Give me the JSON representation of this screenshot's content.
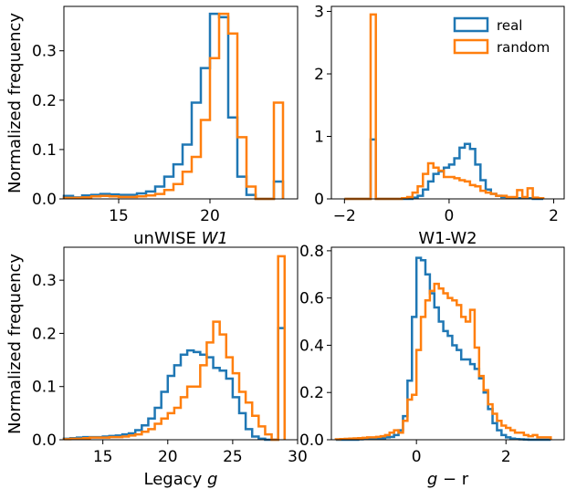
{
  "figure": {
    "ylabel_left": "Normalized frequency",
    "legend": [
      {
        "label": "real",
        "color": "#1f77b4"
      },
      {
        "label": "random",
        "color": "#ff7f0e"
      }
    ]
  },
  "chart_data": [
    {
      "type": "histogram-step",
      "xlabel_main": "unWISE ",
      "xlabel_italic": "W1",
      "xlabel_tail": "",
      "xlim": [
        12.0,
        24.8
      ],
      "ylim": [
        0,
        0.39
      ],
      "xticks": [
        15,
        20
      ],
      "yticks": [
        0.0,
        0.1,
        0.2,
        0.3
      ],
      "ytick_labels": [
        "0.0",
        "0.1",
        "0.2",
        "0.3"
      ],
      "edges": [
        12.0,
        12.5,
        13.0,
        13.5,
        14.0,
        14.5,
        15.0,
        15.5,
        16.0,
        16.5,
        17.0,
        17.5,
        18.0,
        18.5,
        19.0,
        19.5,
        20.0,
        20.5,
        21.0,
        21.5,
        22.0,
        22.5,
        23.0,
        23.5,
        24.0
      ],
      "series": [
        {
          "name": "real",
          "color": "#1f77b4",
          "values": [
            0.006,
            0.003,
            0.007,
            0.008,
            0.01,
            0.009,
            0.008,
            0.008,
            0.011,
            0.015,
            0.025,
            0.045,
            0.07,
            0.11,
            0.195,
            0.265,
            0.375,
            0.368,
            0.165,
            0.045,
            0.008,
            0.0,
            0.0,
            0.035
          ]
        },
        {
          "name": "random",
          "color": "#ff7f0e",
          "values": [
            0.002,
            0.002,
            0.003,
            0.005,
            0.006,
            0.005,
            0.004,
            0.004,
            0.005,
            0.007,
            0.01,
            0.018,
            0.03,
            0.055,
            0.085,
            0.16,
            0.285,
            0.375,
            0.335,
            0.125,
            0.025,
            0.0,
            0.0,
            0.195
          ]
        }
      ]
    },
    {
      "type": "histogram-step",
      "xlabel_main": "W1-W2",
      "xlabel_italic": "",
      "xlabel_tail": "",
      "xlim": [
        -2.25,
        2.2
      ],
      "ylim": [
        0,
        3.08
      ],
      "xticks": [
        -2,
        0,
        2
      ],
      "xtick_labels": [
        "−2",
        "0",
        "2"
      ],
      "yticks": [
        0,
        1,
        2,
        3
      ],
      "ytick_labels": [
        "0",
        "1",
        "2",
        "3"
      ],
      "edges": [
        -2.0,
        -1.9,
        -1.8,
        -1.7,
        -1.6,
        -1.5,
        -1.4,
        -1.3,
        -1.2,
        -1.1,
        -1.0,
        -0.9,
        -0.8,
        -0.7,
        -0.6,
        -0.5,
        -0.4,
        -0.3,
        -0.2,
        -0.1,
        0.0,
        0.1,
        0.2,
        0.3,
        0.4,
        0.5,
        0.6,
        0.7,
        0.8,
        0.9,
        1.0,
        1.1,
        1.2,
        1.3,
        1.4,
        1.5,
        1.6,
        1.7,
        1.8
      ],
      "series": [
        {
          "name": "real",
          "color": "#1f77b4",
          "values": [
            0,
            0,
            0,
            0,
            0,
            0.95,
            0,
            0,
            0,
            0,
            0,
            0,
            0,
            0.02,
            0.05,
            0.15,
            0.28,
            0.4,
            0.44,
            0.5,
            0.55,
            0.65,
            0.82,
            0.88,
            0.8,
            0.55,
            0.3,
            0.15,
            0.08,
            0.05,
            0.03,
            0.02,
            0.01,
            0.01,
            0.01,
            0.01,
            0,
            0,
            0
          ]
        },
        {
          "name": "random",
          "color": "#ff7f0e",
          "values": [
            0,
            0,
            0,
            0,
            0,
            2.95,
            0,
            0,
            0,
            0,
            0,
            0.01,
            0.03,
            0.1,
            0.2,
            0.4,
            0.57,
            0.5,
            0.45,
            0.35,
            0.35,
            0.33,
            0.3,
            0.28,
            0.22,
            0.2,
            0.13,
            0.1,
            0.08,
            0.05,
            0.05,
            0.03,
            0.03,
            0.14,
            0.03,
            0.17,
            0.02,
            0.01,
            0
          ]
        }
      ]
    },
    {
      "type": "histogram-step",
      "xlabel_main": "Legacy ",
      "xlabel_italic": "g",
      "xlabel_tail": "",
      "xlim": [
        12.0,
        30.0
      ],
      "ylim": [
        0,
        0.362
      ],
      "xticks": [
        15,
        20,
        25,
        30
      ],
      "yticks": [
        0.0,
        0.1,
        0.2,
        0.3
      ],
      "ytick_labels": [
        "0.0",
        "0.1",
        "0.2",
        "0.3"
      ],
      "edges": [
        12.0,
        12.5,
        13.0,
        13.5,
        14.0,
        14.5,
        15.0,
        15.5,
        16.0,
        16.5,
        17.0,
        17.5,
        18.0,
        18.5,
        19.0,
        19.5,
        20.0,
        20.5,
        21.0,
        21.5,
        22.0,
        22.5,
        23.0,
        23.5,
        24.0,
        24.5,
        25.0,
        25.5,
        26.0,
        26.5,
        27.0,
        27.5,
        28.0,
        28.5,
        29.0
      ],
      "series": [
        {
          "name": "real",
          "color": "#1f77b4",
          "values": [
            0.002,
            0.003,
            0.004,
            0.005,
            0.005,
            0.005,
            0.006,
            0.007,
            0.008,
            0.01,
            0.012,
            0.018,
            0.027,
            0.04,
            0.06,
            0.09,
            0.12,
            0.14,
            0.16,
            0.168,
            0.165,
            0.16,
            0.155,
            0.135,
            0.13,
            0.115,
            0.08,
            0.05,
            0.02,
            0.006,
            0.002,
            0.0,
            0.0,
            0.21
          ]
        },
        {
          "name": "random",
          "color": "#ff7f0e",
          "values": [
            0.001,
            0.002,
            0.002,
            0.003,
            0.004,
            0.004,
            0.004,
            0.005,
            0.005,
            0.006,
            0.008,
            0.01,
            0.015,
            0.02,
            0.03,
            0.04,
            0.05,
            0.06,
            0.08,
            0.1,
            0.1,
            0.14,
            0.183,
            0.222,
            0.198,
            0.155,
            0.125,
            0.09,
            0.07,
            0.045,
            0.025,
            0.01,
            0.0,
            0.345
          ]
        }
      ]
    },
    {
      "type": "histogram-step",
      "xlabel_main": "",
      "xlabel_italic": "g",
      "xlabel_tail": " − r",
      "xlim": [
        -1.9,
        3.3
      ],
      "ylim": [
        0,
        0.815
      ],
      "xticks": [
        0,
        2
      ],
      "yticks": [
        0.0,
        0.2,
        0.4,
        0.6,
        0.8
      ],
      "ytick_labels": [
        "0.0",
        "0.2",
        "0.4",
        "0.6",
        "0.8"
      ],
      "edges": [
        -1.8,
        -1.7,
        -1.6,
        -1.5,
        -1.4,
        -1.3,
        -1.2,
        -1.1,
        -1.0,
        -0.9,
        -0.8,
        -0.7,
        -0.6,
        -0.5,
        -0.4,
        -0.3,
        -0.2,
        -0.1,
        0.0,
        0.1,
        0.2,
        0.3,
        0.4,
        0.5,
        0.6,
        0.7,
        0.8,
        0.9,
        1.0,
        1.1,
        1.2,
        1.3,
        1.4,
        1.5,
        1.6,
        1.7,
        1.8,
        1.9,
        2.0,
        2.1,
        2.2,
        2.3,
        2.4,
        2.5,
        2.6,
        2.7,
        2.8,
        2.9,
        3.0
      ],
      "series": [
        {
          "name": "real",
          "color": "#1f77b4",
          "values": [
            0,
            0,
            0,
            0,
            0,
            0.002,
            0.003,
            0.005,
            0.005,
            0.006,
            0.007,
            0.01,
            0.012,
            0.02,
            0.04,
            0.1,
            0.25,
            0.52,
            0.77,
            0.76,
            0.7,
            0.62,
            0.56,
            0.5,
            0.46,
            0.44,
            0.4,
            0.38,
            0.34,
            0.34,
            0.32,
            0.3,
            0.26,
            0.2,
            0.13,
            0.07,
            0.04,
            0.02,
            0.01,
            0.005,
            0.003,
            0.002,
            0.001,
            0,
            0,
            0,
            0,
            0
          ]
        },
        {
          "name": "random",
          "color": "#ff7f0e",
          "values": [
            0.002,
            0.003,
            0.004,
            0.005,
            0.006,
            0.007,
            0.008,
            0.01,
            0.01,
            0.012,
            0.015,
            0.02,
            0.03,
            0.04,
            0.03,
            0.08,
            0.17,
            0.19,
            0.38,
            0.52,
            0.59,
            0.63,
            0.66,
            0.64,
            0.62,
            0.6,
            0.59,
            0.57,
            0.52,
            0.5,
            0.55,
            0.39,
            0.27,
            0.21,
            0.15,
            0.11,
            0.08,
            0.06,
            0.05,
            0.04,
            0.03,
            0.03,
            0.02,
            0.015,
            0.02,
            0.01,
            0.01,
            0.01
          ]
        }
      ]
    }
  ]
}
